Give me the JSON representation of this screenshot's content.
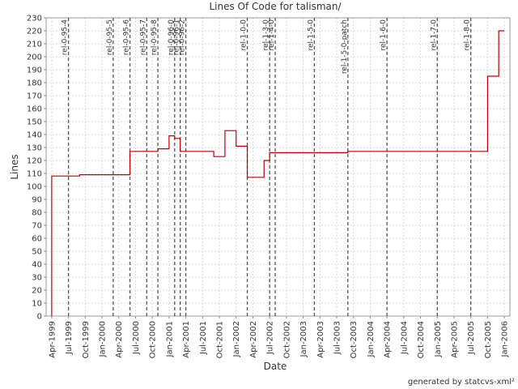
{
  "chart_data": {
    "type": "step",
    "title": "Lines Of Code for talisman/",
    "x_label": "Date",
    "y_label": "Lines",
    "footer": "generated by statcvs-xml²",
    "series": [
      {
        "name": "Lines",
        "color": "#c00000",
        "x": [
          "1999-04",
          "1999-04",
          "1999-09",
          "2000-06",
          "2000-11",
          "2001-01",
          "2001-02",
          "2001-03",
          "2001-09",
          "2001-11",
          "2002-01",
          "2002-03",
          "2002-06",
          "2002-07",
          "2003-09",
          "2005-10",
          "2005-12",
          "2006-01"
        ],
        "values": [
          0,
          108,
          109,
          127,
          129,
          139,
          137,
          127,
          123,
          143,
          131,
          107,
          120,
          126,
          127,
          185,
          220,
          220
        ]
      }
    ],
    "markers": [
      {
        "label": "rel-0-95-4",
        "x": "1999-07"
      },
      {
        "label": "rel-0-95-5",
        "x": "2000-03"
      },
      {
        "label": "rel-0-95-6",
        "x": "2000-06"
      },
      {
        "label": "rel-0-95-7",
        "x": "2000-09"
      },
      {
        "label": "rel-0-95-8",
        "x": "2000-11"
      },
      {
        "label": "rel-0-96-0",
        "x": "2001-02"
      },
      {
        "label": "rel-0-96-1",
        "x": "2001-03"
      },
      {
        "label": "rel-0-96-2",
        "x": "2001-04"
      },
      {
        "label": "rel-1-0-0",
        "x": "2002-03"
      },
      {
        "label": "rel-1-3-0",
        "x": "2002-07"
      },
      {
        "label": "rel-1-4-0",
        "x": "2002-08"
      },
      {
        "label": "rel-1-5-0",
        "x": "2003-03"
      },
      {
        "label": "rel-1-5-0-patch",
        "x": "2003-09"
      },
      {
        "label": "rel-1-6-0",
        "x": "2004-04"
      },
      {
        "label": "rel-1-7-0",
        "x": "2005-01"
      },
      {
        "label": "rel-1-8-0",
        "x": "2005-07"
      }
    ],
    "xlim": [
      "1999-03",
      "2006-02"
    ],
    "xticks": [
      {
        "value": "1999-04",
        "label": "Apr-1999"
      },
      {
        "value": "1999-07",
        "label": "Jul-1999"
      },
      {
        "value": "1999-10",
        "label": "Oct-1999"
      },
      {
        "value": "2000-01",
        "label": "Jan-2000"
      },
      {
        "value": "2000-04",
        "label": "Apr-2000"
      },
      {
        "value": "2000-07",
        "label": "Jul-2000"
      },
      {
        "value": "2000-10",
        "label": "Oct-2000"
      },
      {
        "value": "2001-01",
        "label": "Jan-2001"
      },
      {
        "value": "2001-04",
        "label": "Apr-2001"
      },
      {
        "value": "2001-07",
        "label": "Jul-2001"
      },
      {
        "value": "2001-10",
        "label": "Oct-2001"
      },
      {
        "value": "2002-01",
        "label": "Jan-2002"
      },
      {
        "value": "2002-04",
        "label": "Apr-2002"
      },
      {
        "value": "2002-07",
        "label": "Jul-2002"
      },
      {
        "value": "2002-10",
        "label": "Oct-2002"
      },
      {
        "value": "2003-01",
        "label": "Jan-2003"
      },
      {
        "value": "2003-04",
        "label": "Apr-2003"
      },
      {
        "value": "2003-07",
        "label": "Jul-2003"
      },
      {
        "value": "2003-10",
        "label": "Oct-2003"
      },
      {
        "value": "2004-01",
        "label": "Jan-2004"
      },
      {
        "value": "2004-04",
        "label": "Apr-2004"
      },
      {
        "value": "2004-07",
        "label": "Jul-2004"
      },
      {
        "value": "2004-10",
        "label": "Oct-2004"
      },
      {
        "value": "2005-01",
        "label": "Jan-2005"
      },
      {
        "value": "2005-04",
        "label": "Apr-2005"
      },
      {
        "value": "2005-07",
        "label": "Jul-2005"
      },
      {
        "value": "2005-10",
        "label": "Oct-2005"
      },
      {
        "value": "2006-01",
        "label": "Jan-2006"
      }
    ],
    "ylim": [
      0,
      230
    ],
    "yticks": [
      0,
      10,
      20,
      30,
      40,
      50,
      60,
      70,
      80,
      90,
      100,
      110,
      120,
      130,
      140,
      150,
      160,
      170,
      180,
      190,
      200,
      210,
      220,
      230
    ],
    "grid": true
  }
}
